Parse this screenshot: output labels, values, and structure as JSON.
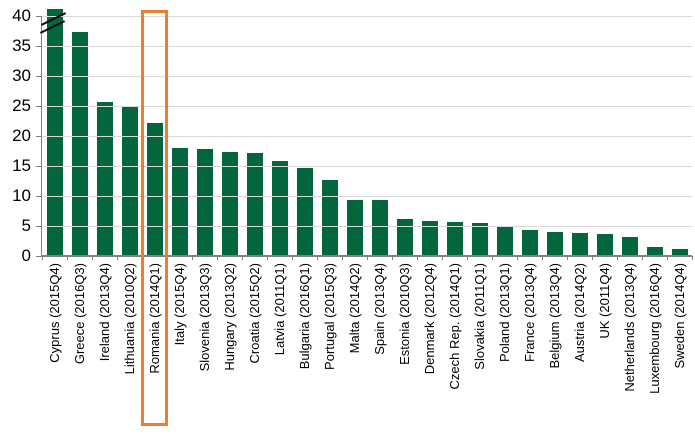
{
  "colors": {
    "bar": "#03663C",
    "highlight_box": "#ED7D31",
    "gridline": "#D9D9D9",
    "axis": "#808080",
    "tick": "#808080",
    "label_text": "#000000"
  },
  "chart_data": {
    "type": "bar",
    "title": "",
    "xlabel": "",
    "ylabel": "",
    "ylim": [
      0,
      40
    ],
    "yticks": [
      0,
      5,
      10,
      15,
      20,
      25,
      30,
      35,
      40
    ],
    "grid": "horizontal",
    "legend": "none",
    "categories": [
      "Cyprus (2015Q4)",
      "Greece (2016Q3)",
      "Ireland (2013Q4)",
      "Lithuania (2010Q2)",
      "Romania (2014Q1)",
      "Italy (2015Q4)",
      "Slovenia (2013Q3)",
      "Hungary (2013Q2)",
      "Croatia (2015Q2)",
      "Latvia (2011Q1)",
      "Bulgaria (2016Q1)",
      "Portugal (2015Q3)",
      "Malta (2014Q2)",
      "Spain (2013Q4)",
      "Estonia (2010Q3)",
      "Denmark (2012Q4)",
      "Czech Rep. (2014Q1)",
      "Slovakia (2011Q1)",
      "Poland (2013Q1)",
      "France (2013Q4)",
      "Belgium (2013Q4)",
      "Austria (2014Q2)",
      "UK (2011Q4)",
      "Netherlands (2013Q4)",
      "Luxembourg (2016Q4)",
      "Sweden (2014Q4)"
    ],
    "values": [
      40,
      37.3,
      25.6,
      25.0,
      22.2,
      18.0,
      17.8,
      17.3,
      17.1,
      15.8,
      14.7,
      12.7,
      9.3,
      9.3,
      6.1,
      5.8,
      5.6,
      5.5,
      5.0,
      4.3,
      4.0,
      3.8,
      3.6,
      3.2,
      1.5,
      1.1
    ],
    "axis_break": {
      "category": "Cyprus (2015Q4)",
      "bar_truncated_at": 40,
      "marks": "double-slash"
    },
    "highlight": {
      "category": "Romania (2014Q1)",
      "style": "orange-outline-box"
    }
  }
}
